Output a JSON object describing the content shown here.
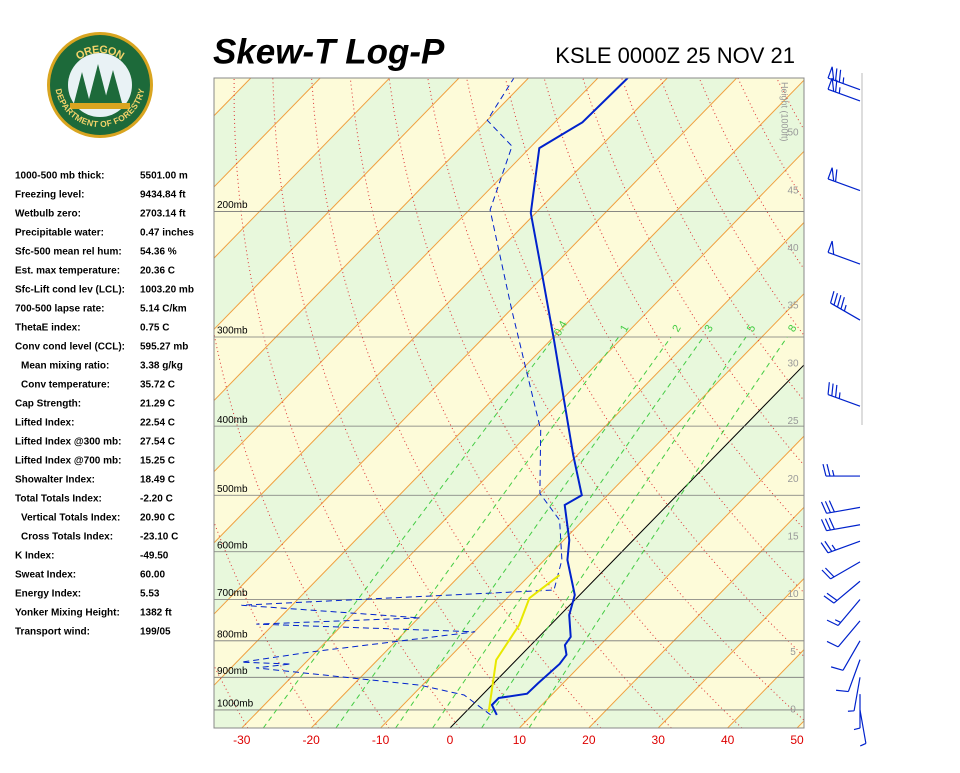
{
  "logo": {
    "top": "OREGON",
    "bottom": "DEPARTMENT OF FORESTRY"
  },
  "stats": [
    [
      "1000-500 mb thick:",
      "5501.00 m"
    ],
    [
      "Freezing level:",
      "9434.84 ft"
    ],
    [
      "Wetbulb zero:",
      "2703.14 ft"
    ],
    [
      "Precipitable water:",
      "0.47 inches"
    ],
    [
      "Sfc-500 mean rel hum:",
      "54.36 %"
    ],
    [
      "Est. max temperature:",
      "20.36 C"
    ],
    [
      "Sfc-Lift cond lev (LCL):",
      "1003.20 mb"
    ],
    [
      "700-500 lapse rate:",
      "5.14 C/km"
    ],
    [
      "ThetaE index:",
      "0.75 C"
    ],
    [
      "Conv cond level (CCL):",
      "595.27 mb"
    ],
    [
      "Mean mixing ratio:",
      "3.38 g/kg"
    ],
    [
      "Conv temperature:",
      "35.72 C"
    ],
    [
      "Cap Strength:",
      "21.29 C"
    ],
    [
      "Lifted Index:",
      "22.54 C"
    ],
    [
      "Lifted Index @300 mb:",
      "27.54 C"
    ],
    [
      "Lifted Index @700 mb:",
      "15.25 C"
    ],
    [
      "Showalter Index:",
      "18.49 C"
    ],
    [
      "Total Totals Index:",
      "-2.20 C"
    ],
    [
      "Vertical Totals Index:",
      "20.90 C"
    ],
    [
      "Cross Totals Index:",
      "-23.10 C"
    ],
    [
      "K Index:",
      "-49.50"
    ],
    [
      "Sweat Index:",
      "60.00"
    ],
    [
      "Energy Index:",
      "5.53"
    ],
    [
      "Yonker Mixing Height:",
      "1382 ft"
    ],
    [
      "Transport wind:",
      "199/05"
    ]
  ],
  "chart_data": {
    "type": "skewt",
    "title": "Skew-T Log-P",
    "subtitle": "KSLE 0000Z 25 NOV 21",
    "xlim": [
      -34,
      51
    ],
    "xticks": [
      -30,
      -20,
      -10,
      0,
      10,
      20,
      30,
      40,
      50
    ],
    "ylim": [
      1060,
      130
    ],
    "isobars": [
      {
        "value": 200,
        "label": "200mb"
      },
      {
        "value": 300,
        "label": "300mb"
      },
      {
        "value": 400,
        "label": "400mb"
      },
      {
        "value": 500,
        "label": "500mb"
      },
      {
        "value": 600,
        "label": "600mb"
      },
      {
        "value": 700,
        "label": "700mb"
      },
      {
        "value": 800,
        "label": "800mb"
      },
      {
        "value": 900,
        "label": "900mb"
      },
      {
        "value": 1000,
        "label": "1000mb"
      }
    ],
    "height_label": "Height (1000ft)",
    "height_ticks": [
      0,
      5,
      10,
      15,
      20,
      25,
      30,
      35,
      40,
      45,
      50
    ],
    "mixing_ratios": [
      0.4,
      1,
      2,
      3,
      5,
      8
    ],
    "series": [
      {
        "color": "#0022cc",
        "dash": false,
        "pressure": [
          1016,
          984,
          962,
          949,
          917,
          862,
          837,
          811,
          790,
          736,
          690,
          616,
          578,
          516,
          500,
          439,
          303,
          242,
          201,
          163,
          150,
          130
        ],
        "values": [
          4.9,
          2.8,
          2.8,
          6.3,
          6.4,
          6.8,
          6.5,
          4.9,
          4.6,
          1.3,
          -0.7,
          -6.7,
          -9.2,
          -14.8,
          -13.7,
          -20.6,
          -39.5,
          -51.1,
          -60.7,
          -68.6,
          -66,
          -65.7
        ]
      },
      {
        "color": "#0022cc",
        "dash": true,
        "pressure": [
          1016,
          953,
          923,
          873,
          862,
          857,
          829,
          777,
          758,
          743,
          713,
          679,
          616,
          542,
          497,
          405,
          275,
          199,
          162,
          149,
          130
        ],
        "values": [
          4.0,
          -2.6,
          -10.4,
          -36.4,
          -31.9,
          -39.3,
          -30.7,
          -9.9,
          -42.5,
          -19.8,
          -47.3,
          -4.4,
          -7.5,
          -13.4,
          -20,
          -28.8,
          -49.8,
          -67,
          -72.8,
          -80,
          -82.1
        ]
      },
      {
        "color": "#e8e800",
        "dash": false,
        "pressure": [
          1006,
          851,
          760,
          697,
          647
        ],
        "values": [
          3.3,
          -2.9,
          -4.5,
          -6.8,
          -5.7
        ]
      }
    ],
    "winds": [
      {
        "p": 135,
        "dir": 290,
        "speed": 75
      },
      {
        "p": 140,
        "dir": 290,
        "speed": 65
      },
      {
        "p": 187,
        "dir": 290,
        "speed": 60
      },
      {
        "p": 237,
        "dir": 290,
        "speed": 50
      },
      {
        "p": 284,
        "dir": 300,
        "speed": 45
      },
      {
        "p": 375,
        "dir": 290,
        "speed": 35
      },
      {
        "p": 470,
        "dir": 270,
        "speed": 25
      },
      {
        "p": 520,
        "dir": 260,
        "speed": 30
      },
      {
        "p": 550,
        "dir": 260,
        "speed": 30
      },
      {
        "p": 580,
        "dir": 250,
        "speed": 25
      },
      {
        "p": 620,
        "dir": 240,
        "speed": 20
      },
      {
        "p": 660,
        "dir": 230,
        "speed": 20
      },
      {
        "p": 700,
        "dir": 220,
        "speed": 15
      },
      {
        "p": 750,
        "dir": 220,
        "speed": 10
      },
      {
        "p": 800,
        "dir": 210,
        "speed": 10
      },
      {
        "p": 850,
        "dir": 200,
        "speed": 10
      },
      {
        "p": 900,
        "dir": 190,
        "speed": 5
      },
      {
        "p": 950,
        "dir": 180,
        "speed": 5
      },
      {
        "p": 1000,
        "dir": 170,
        "speed": 5
      }
    ]
  }
}
